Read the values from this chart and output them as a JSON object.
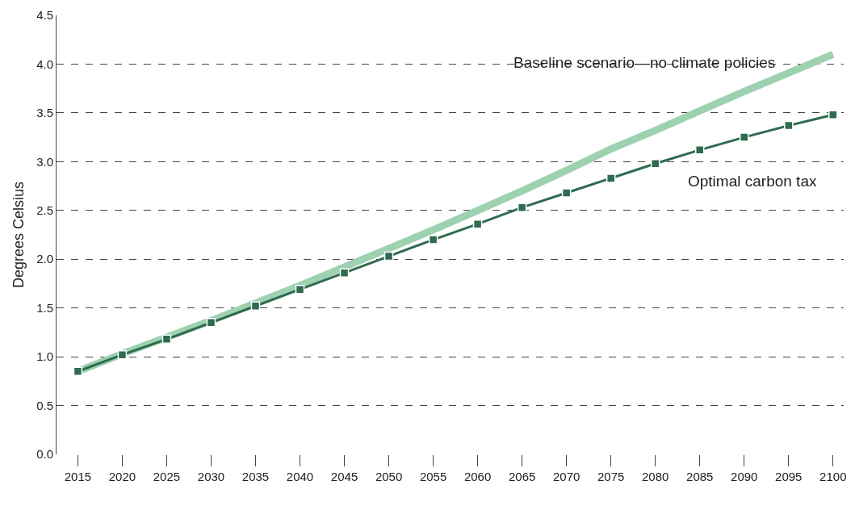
{
  "chart_data": {
    "type": "line",
    "ylabel": "Degrees Celsius",
    "x": [
      2015,
      2020,
      2025,
      2030,
      2035,
      2040,
      2045,
      2050,
      2055,
      2060,
      2065,
      2070,
      2075,
      2080,
      2085,
      2090,
      2095,
      2100
    ],
    "series": [
      {
        "name": "Baseline scenario—no climate policies",
        "color": "#9dd1b0",
        "marker": "none",
        "values": [
          0.85,
          1.03,
          1.2,
          1.37,
          1.55,
          1.73,
          1.92,
          2.11,
          2.3,
          2.5,
          2.7,
          2.91,
          3.13,
          3.32,
          3.52,
          3.72,
          3.91,
          4.1
        ]
      },
      {
        "name": "Optimal carbon tax",
        "color": "#2e6b4f",
        "marker": "square",
        "values": [
          0.85,
          1.02,
          1.18,
          1.35,
          1.52,
          1.69,
          1.86,
          2.03,
          2.2,
          2.36,
          2.53,
          2.68,
          2.83,
          2.98,
          3.12,
          3.25,
          3.37,
          3.48
        ]
      }
    ],
    "xlim": [
      2012.6,
      2101.2
    ],
    "xticks": [
      2015,
      2020,
      2025,
      2030,
      2035,
      2040,
      2045,
      2050,
      2055,
      2060,
      2065,
      2070,
      2075,
      2080,
      2085,
      2090,
      2095,
      2100
    ],
    "ylim": [
      0,
      4.5
    ],
    "yticks": [
      {
        "value": 0,
        "label": "0.0"
      },
      {
        "value": 0.5,
        "label": "0.5"
      },
      {
        "value": 1,
        "label": "1.0"
      },
      {
        "value": 1.5,
        "label": "1.5"
      },
      {
        "value": 2,
        "label": "2.0"
      },
      {
        "value": 2.5,
        "label": "2.5"
      },
      {
        "value": 3,
        "label": "3.0"
      },
      {
        "value": 3.5,
        "label": "3.5"
      },
      {
        "value": 4,
        "label": "4.0"
      },
      {
        "value": 4.5,
        "label": "4.5"
      }
    ],
    "grid": "y",
    "legend": false
  }
}
